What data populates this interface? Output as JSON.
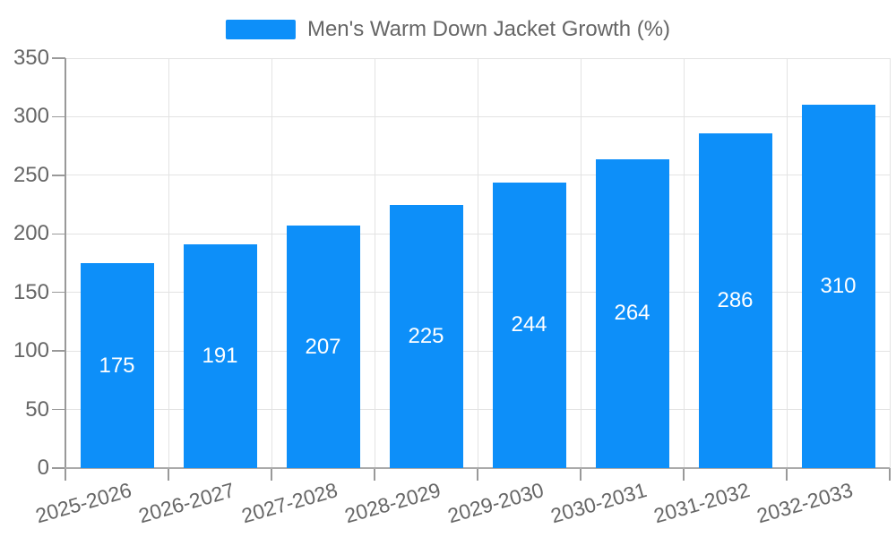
{
  "legend": {
    "label": "Men's Warm Down Jacket Growth (%)",
    "swatch_color": "#0D8FF9"
  },
  "chart_data": {
    "type": "bar",
    "title": "",
    "xlabel": "",
    "ylabel": "",
    "series_name": "Men's Warm Down Jacket Growth (%)",
    "categories": [
      "2025-2026",
      "2026-2027",
      "2027-2028",
      "2028-2029",
      "2029-2030",
      "2030-2031",
      "2031-2032",
      "2032-2033"
    ],
    "values": [
      175,
      191,
      207,
      225,
      244,
      264,
      286,
      310
    ],
    "ylim": [
      0,
      350
    ],
    "yticks": [
      0,
      50,
      100,
      150,
      200,
      250,
      300,
      350
    ],
    "grid": true,
    "legend_position": "top-center",
    "x_label_rotation_deg": -16,
    "colors": {
      "bar": "#0D8FF9",
      "bar_value_label": "#ffffff",
      "axis_text": "#666666",
      "grid_line": "#e3e3e3",
      "axis_line": "#999999"
    }
  }
}
